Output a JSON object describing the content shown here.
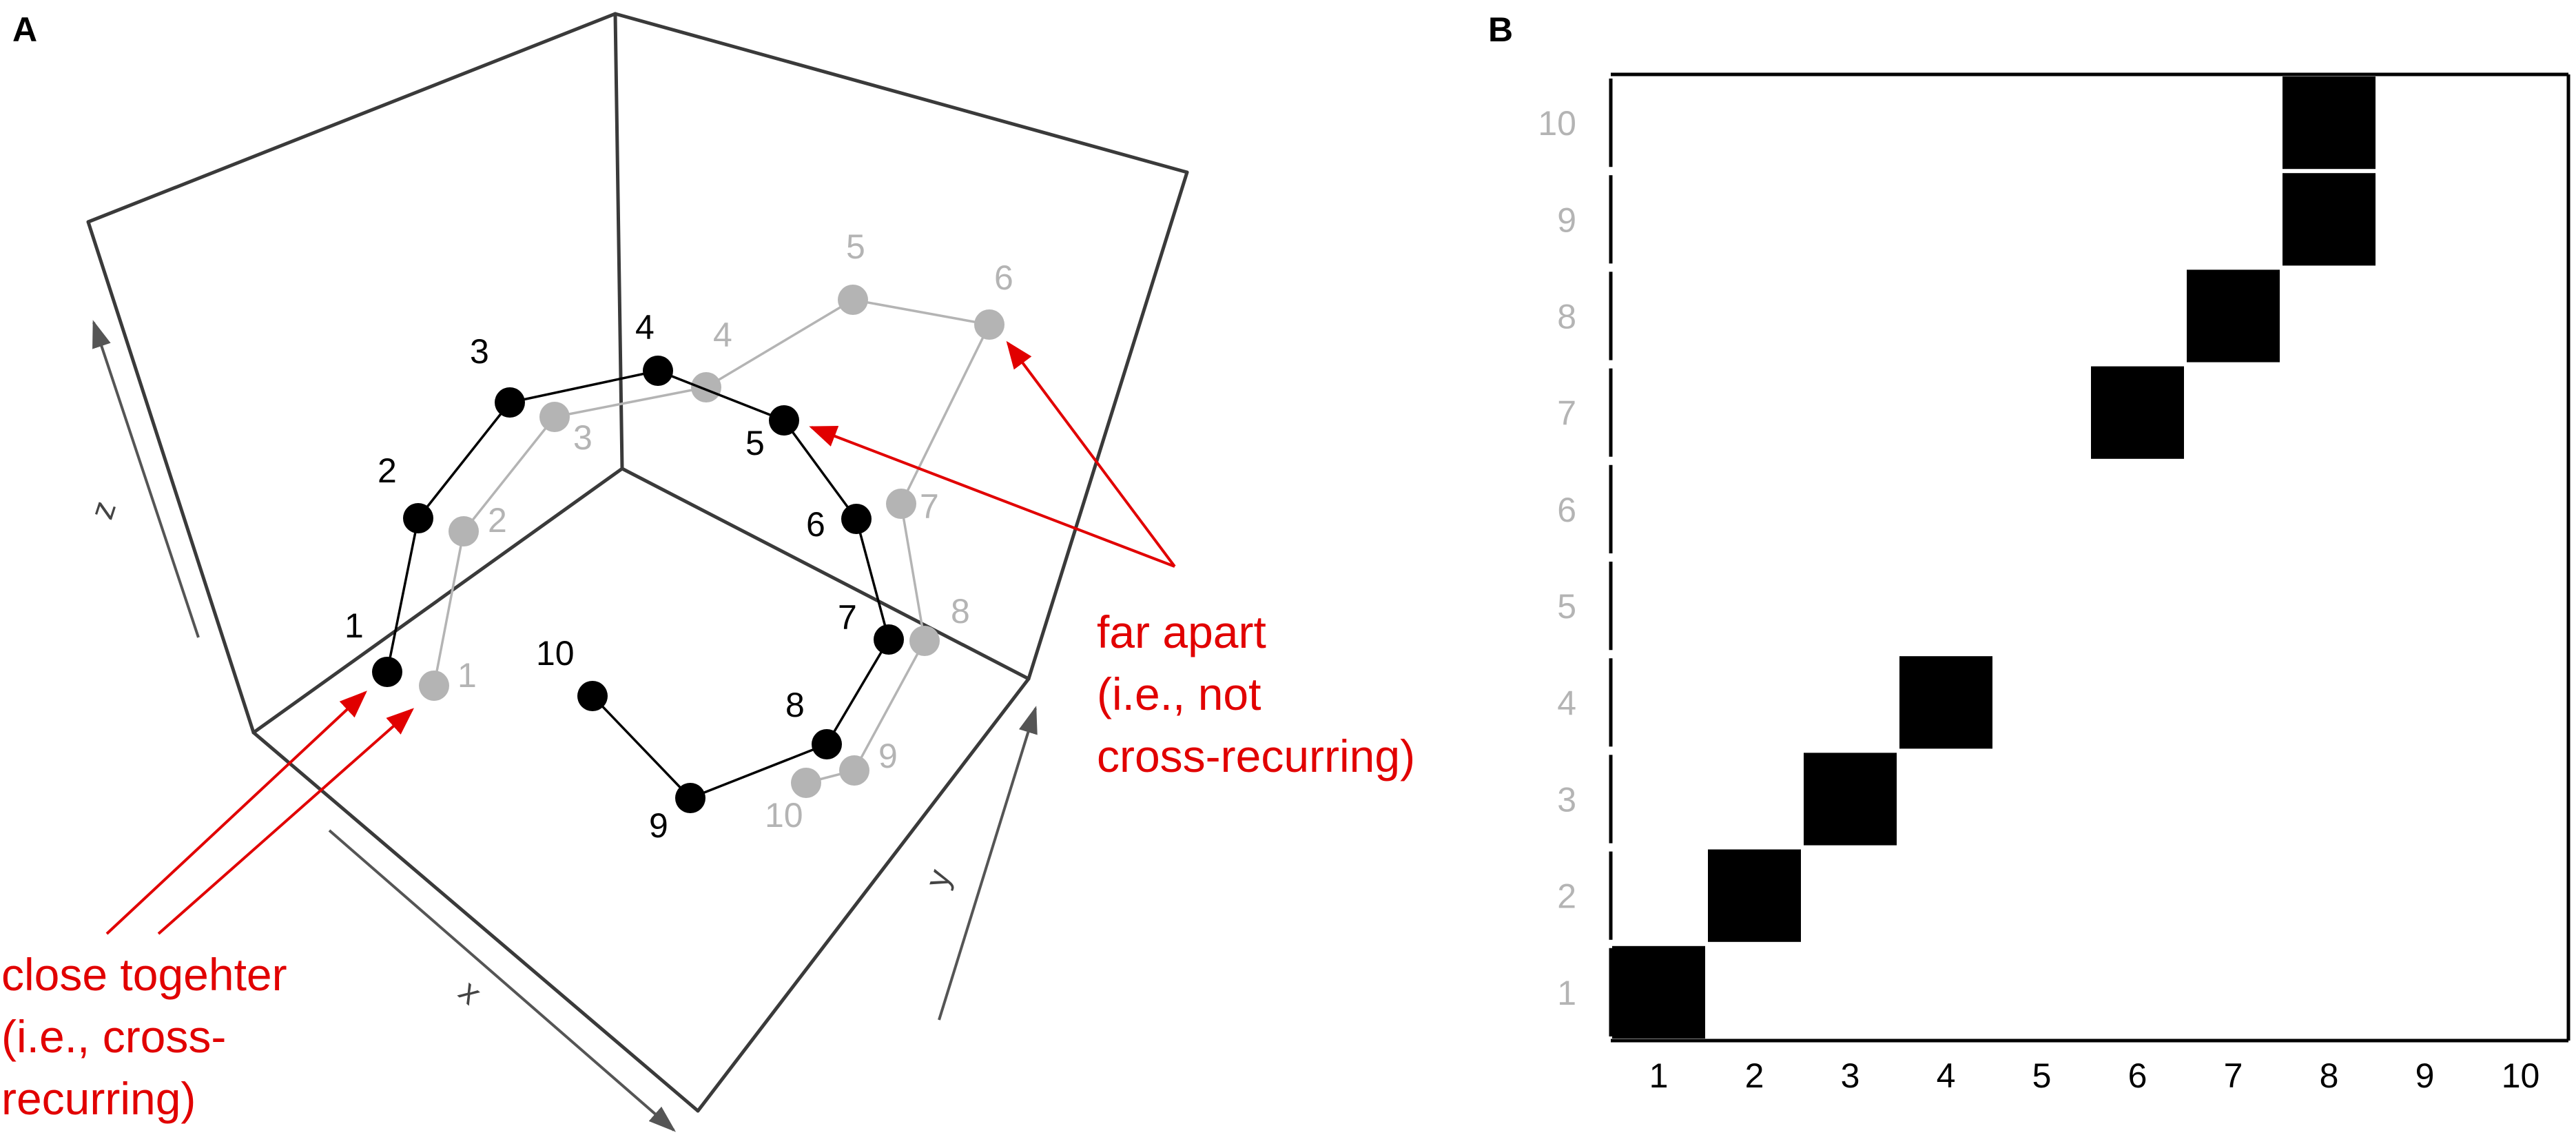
{
  "panel_a": {
    "label": "A",
    "axis_labels": {
      "x": "x",
      "y": "y",
      "z": "z"
    },
    "black_series": {
      "color": "#000000",
      "points": [
        {
          "label": "1"
        },
        {
          "label": "2"
        },
        {
          "label": "3"
        },
        {
          "label": "4"
        },
        {
          "label": "5"
        },
        {
          "label": "6"
        },
        {
          "label": "7"
        },
        {
          "label": "8"
        },
        {
          "label": "9"
        },
        {
          "label": "10"
        }
      ]
    },
    "gray_series": {
      "color": "#b4b4b4",
      "points": [
        {
          "label": "1"
        },
        {
          "label": "2"
        },
        {
          "label": "3"
        },
        {
          "label": "4"
        },
        {
          "label": "5"
        },
        {
          "label": "6"
        },
        {
          "label": "7"
        },
        {
          "label": "8"
        },
        {
          "label": "9"
        },
        {
          "label": "10"
        }
      ]
    },
    "annotation_close": {
      "lines": [
        "close togehter",
        "(i.e., cross-",
        "recurring)"
      ],
      "color": "#e10000"
    },
    "annotation_far": {
      "lines": [
        "far apart",
        "(i.e., not",
        "cross-recurring)"
      ],
      "color": "#e10000"
    }
  },
  "chart_data": {
    "type": "heatmap",
    "panel_label": "B",
    "x_ticks": [
      "1",
      "2",
      "3",
      "4",
      "5",
      "6",
      "7",
      "8",
      "9",
      "10"
    ],
    "y_ticks": [
      "1",
      "2",
      "3",
      "4",
      "5",
      "6",
      "7",
      "8",
      "9",
      "10"
    ],
    "x_tick_color": "#000000",
    "y_tick_color": "#b4b4b4",
    "filled_color": "#000000",
    "cells": [
      {
        "x": 1,
        "y": 1
      },
      {
        "x": 2,
        "y": 2
      },
      {
        "x": 3,
        "y": 3
      },
      {
        "x": 4,
        "y": 4
      },
      {
        "x": 6,
        "y": 7
      },
      {
        "x": 7,
        "y": 8
      },
      {
        "x": 8,
        "y": 9
      },
      {
        "x": 8,
        "y": 10
      }
    ]
  }
}
